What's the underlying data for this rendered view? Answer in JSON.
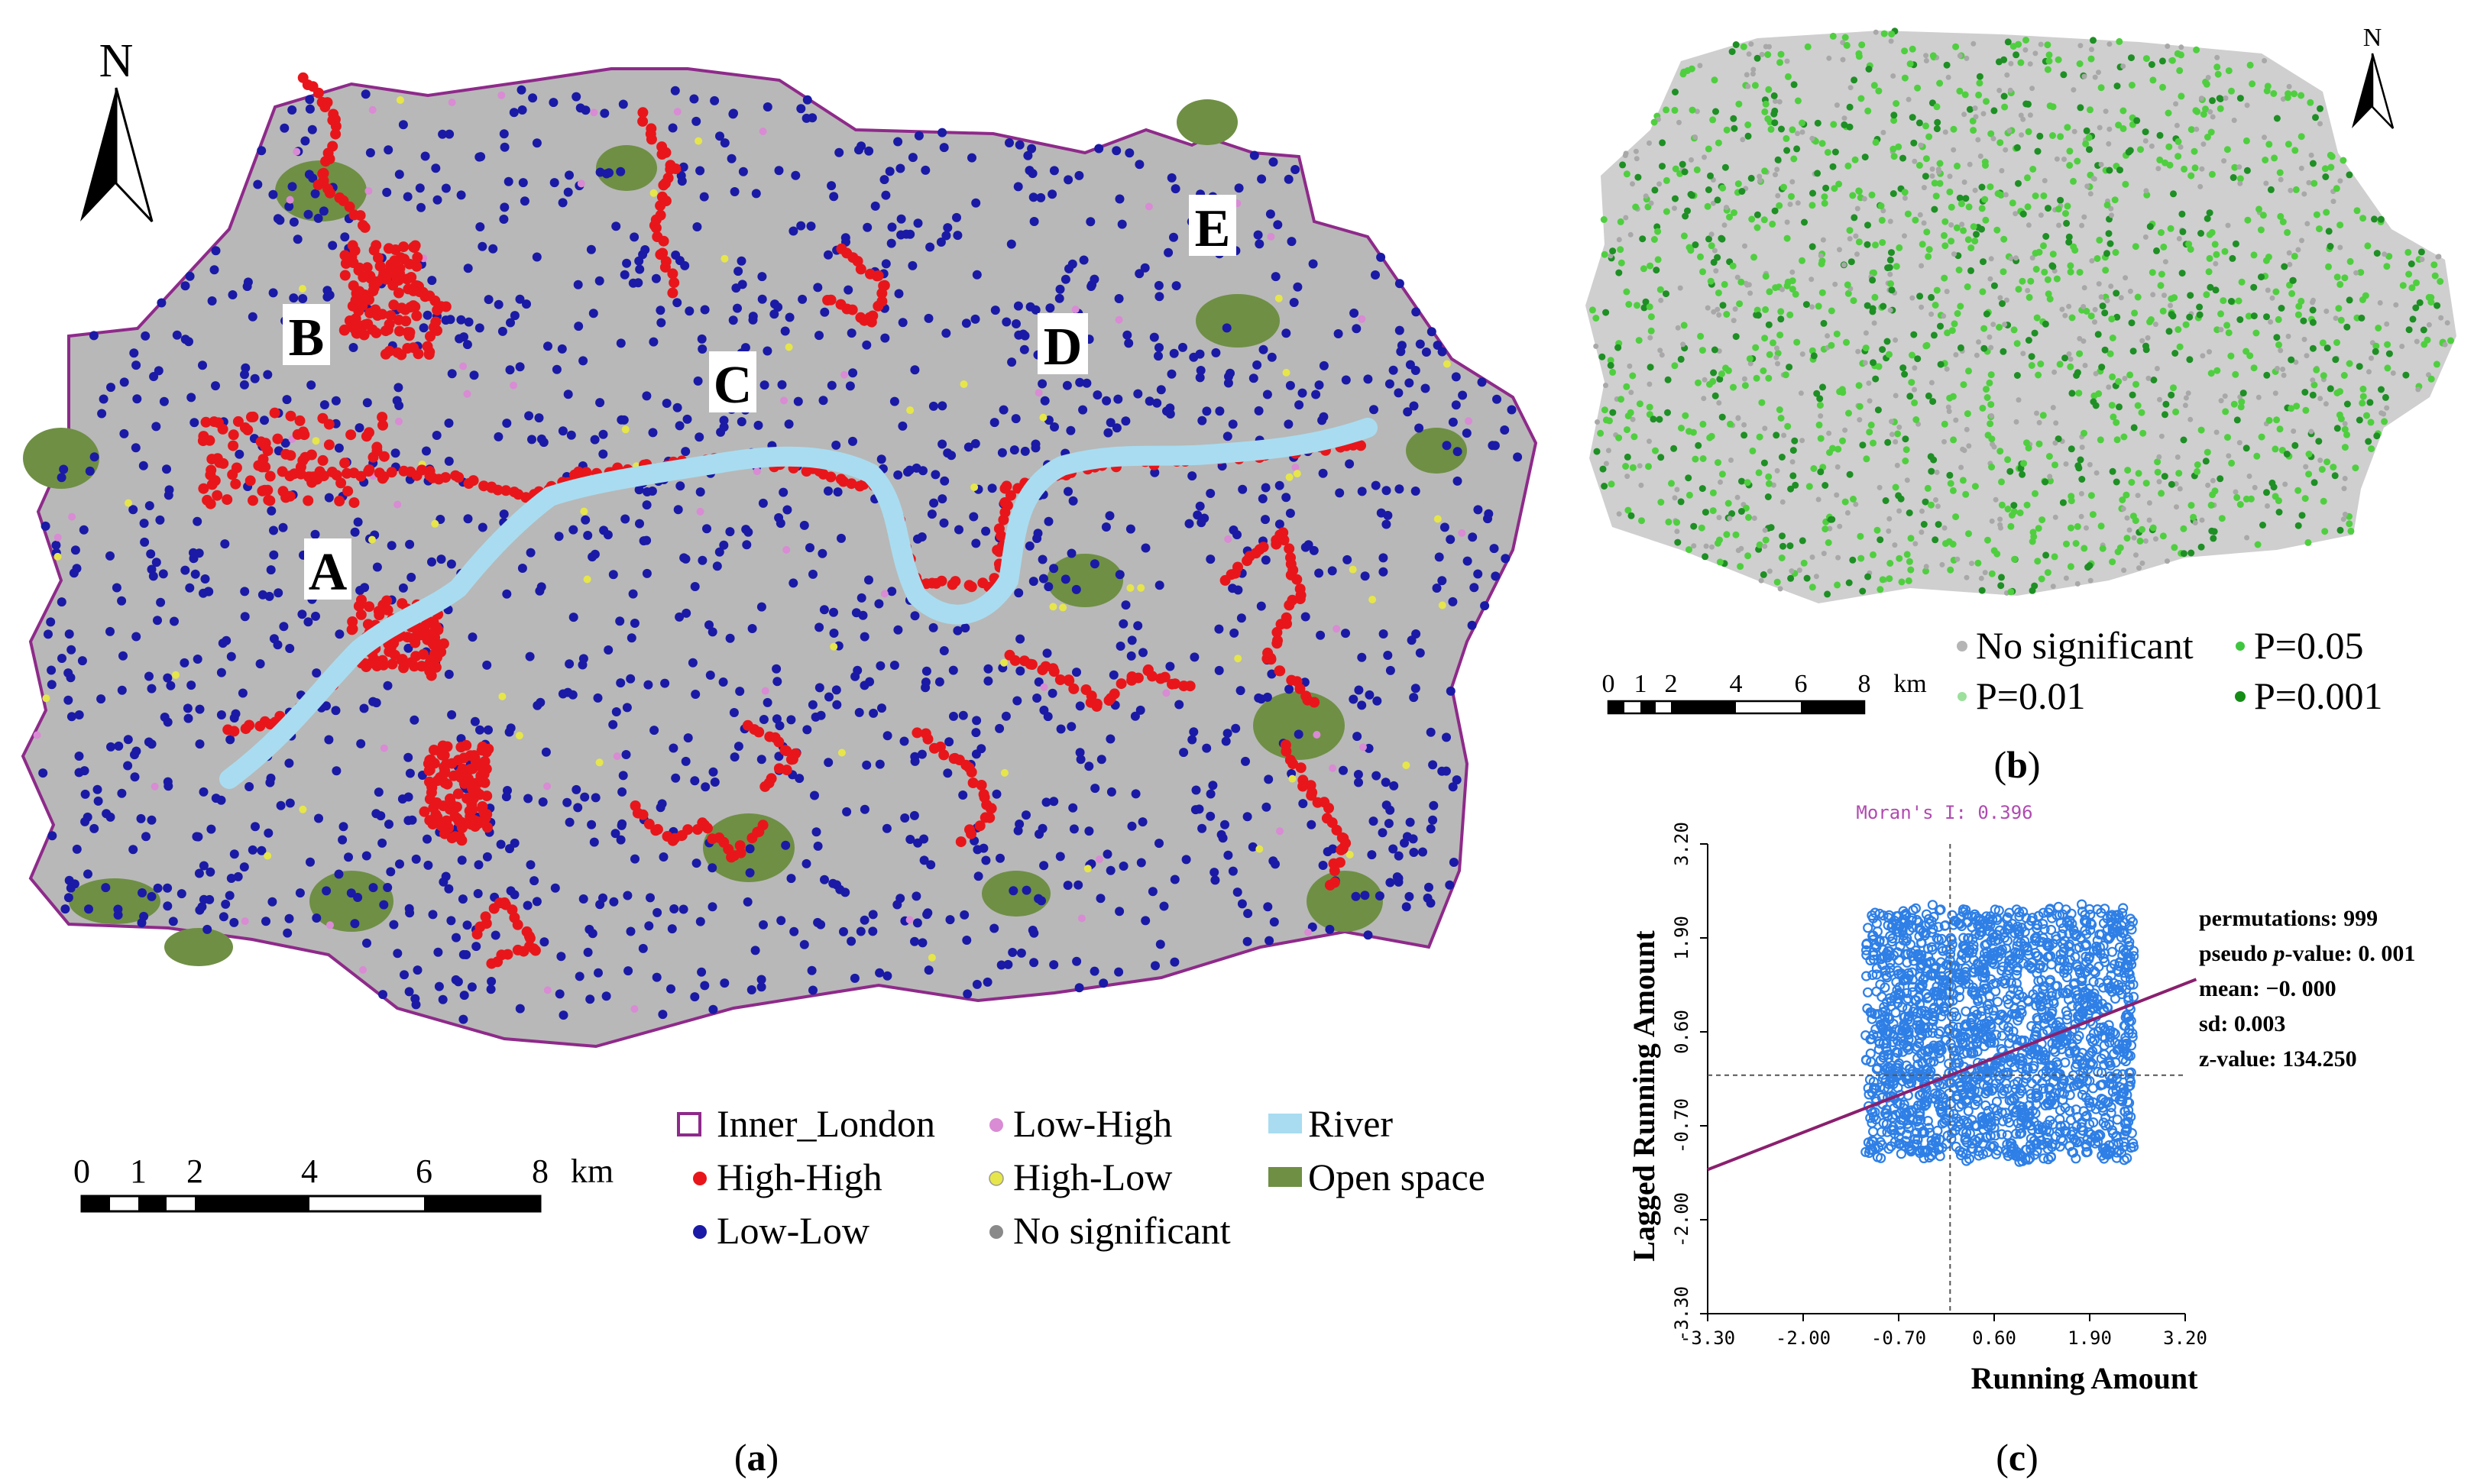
{
  "panel_a": {
    "caption": "(a)",
    "north": "N",
    "area_labels": [
      "A",
      "B",
      "C",
      "D",
      "E"
    ],
    "scale": {
      "ticks": [
        "0",
        "1",
        "2",
        "4",
        "6",
        "8"
      ],
      "unit": "km"
    },
    "legend": [
      {
        "label": "Inner_London",
        "symbol": "outline",
        "color": "#8e2a8a"
      },
      {
        "label": "Low-High",
        "symbol": "dot",
        "color": "#d98bd4"
      },
      {
        "label": "River",
        "symbol": "patch",
        "color": "#a9dcf0"
      },
      {
        "label": "High-High",
        "symbol": "dot",
        "color": "#e8161a"
      },
      {
        "label": "High-Low",
        "symbol": "dot",
        "color": "#e6e64a"
      },
      {
        "label": "Open space",
        "symbol": "patch",
        "color": "#6f8f45"
      },
      {
        "label": "Low-Low",
        "symbol": "dot",
        "color": "#1a1aa6"
      },
      {
        "label": "No significant",
        "symbol": "dot",
        "color": "#8a8a8a"
      }
    ]
  },
  "panel_b": {
    "caption": "(b)",
    "north": "N",
    "scale": {
      "ticks": [
        "0",
        "1",
        "2",
        "4",
        "6",
        "8"
      ],
      "unit": "km"
    },
    "legend": [
      {
        "label": "No significant",
        "color": "#b5b5b5"
      },
      {
        "label": "P=0.05",
        "color": "#3ec63e"
      },
      {
        "label": "P=0.01",
        "color": "#9be09b"
      },
      {
        "label": "P=0.001",
        "color": "#158c15"
      }
    ],
    "colors": {
      "base": "#c9c9c9",
      "light": "#4fcf3f",
      "dark": "#1e8f24"
    }
  },
  "panel_c": {
    "caption": "(c)",
    "stats": {
      "morans": "Moran's I: 0.396",
      "permutations": "permutations: 999",
      "pseudo_prefix": "pseudo ",
      "pseudo_p": "p",
      "pseudo_suffix": "-value: 0. 001",
      "mean": "mean: −0. 000",
      "sd": "sd: 0.003",
      "z": "z-value: 134.250"
    }
  },
  "chart_data": {
    "type": "scatter",
    "title": "Moran's I: 0.396",
    "xlabel": "Running Amount",
    "ylabel": "Lagged Running Amount",
    "xlim": [
      -3.3,
      3.2
    ],
    "ylim": [
      -3.3,
      3.2
    ],
    "xticks": [
      "-3.30",
      "-2.00",
      "-0.70",
      "0.60",
      "1.90",
      "3.20"
    ],
    "yticks": [
      "-3.30",
      "-2.00",
      "-0.70",
      "0.60",
      "1.90",
      "3.20"
    ],
    "cloud": {
      "x_range": [
        -1.15,
        2.5
      ],
      "y_range": [
        -1.15,
        2.3
      ]
    },
    "regression": {
      "slope": 0.396,
      "intercept": 0.0
    },
    "reference_lines": {
      "x": 0.0,
      "y": 0.0
    },
    "colors": {
      "points": "#2e7fe6",
      "line": "#8a1f6e",
      "title": "#b04ab0"
    }
  }
}
